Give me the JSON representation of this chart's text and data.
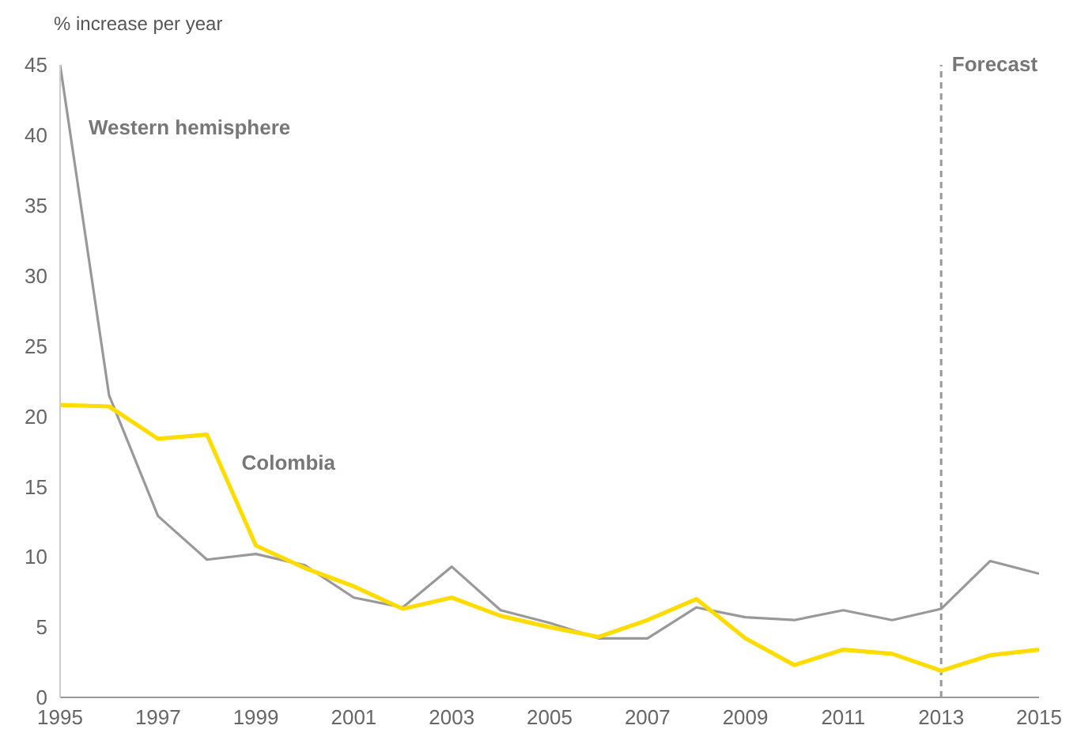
{
  "chart_data": {
    "type": "line",
    "ylabel": "% increase per year",
    "x": [
      1995,
      1996,
      1997,
      1998,
      1999,
      2000,
      2001,
      2002,
      2003,
      2004,
      2005,
      2006,
      2007,
      2008,
      2009,
      2010,
      2011,
      2012,
      2013,
      2014,
      2015
    ],
    "series": [
      {
        "name": "Western hemisphere",
        "color": "#999999",
        "values": [
          45,
          21.5,
          12.9,
          9.8,
          10.2,
          9.4,
          7.1,
          6.4,
          9.3,
          6.2,
          5.3,
          4.2,
          4.2,
          6.4,
          5.7,
          5.5,
          6.2,
          5.5,
          6.3,
          9.7,
          8.8
        ]
      },
      {
        "name": "Colombia",
        "color": "#ffdc00",
        "values": [
          20.8,
          20.7,
          18.4,
          18.7,
          10.8,
          9.2,
          7.9,
          6.3,
          7.1,
          5.8,
          5.0,
          4.3,
          5.5,
          7.0,
          4.2,
          2.3,
          3.4,
          3.1,
          1.9,
          3.0,
          3.4
        ]
      }
    ],
    "xlim": [
      1995,
      2015
    ],
    "xticks": [
      1995,
      1997,
      1999,
      2001,
      2003,
      2005,
      2007,
      2009,
      2011,
      2013,
      2015
    ],
    "ylim": [
      0,
      45
    ],
    "yticks": [
      0,
      5,
      10,
      15,
      20,
      25,
      30,
      35,
      40,
      45
    ],
    "grid": false,
    "legend": false,
    "ref_lines": [
      {
        "axis": "x",
        "value": 2013,
        "label": "Forecast",
        "color": "#999999",
        "line_style": "dashed"
      }
    ]
  }
}
